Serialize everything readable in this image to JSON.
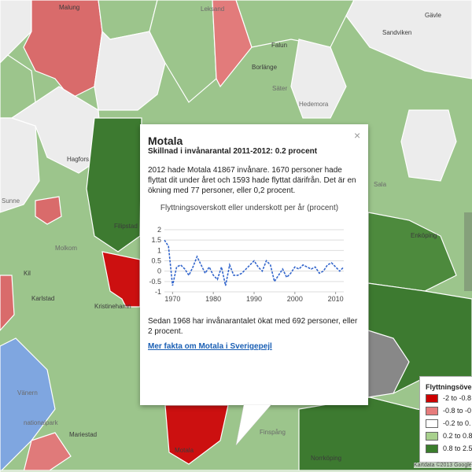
{
  "map": {
    "places": [
      "Malung",
      "Leksand",
      "Falun",
      "Borlänge",
      "Gävle",
      "Sandviken",
      "Säter",
      "Hedemora",
      "Hagfors",
      "Sunne",
      "Filipstad",
      "Molkom",
      "Kil",
      "Karlstad",
      "Kristinehamn",
      "Vänern",
      "nationalpark",
      "Mariestad",
      "Sala",
      "Enköping",
      "Finspång",
      "Norrköping",
      "Motala"
    ],
    "attribution": "Kartdata ©2013 Google"
  },
  "popup": {
    "title": "Motala",
    "subtitle": "Skillnad i invånarantal 2011-2012: 0.2 procent",
    "paragraph1": "2012 hade Motala 41867 invånare. 1670 personer hade flyttat dit under året och 1593 hade flyttat därifrån. Det är en ökning med 77 personer, eller 0,2 procent.",
    "paragraph2": "Sedan 1968 har invånarantalet ökat med 692 personer, eller 2 procent.",
    "link": "Mer fakta om Motala i Sverigepejl",
    "close": "×"
  },
  "chart_data": {
    "type": "line",
    "title": "Flyttningsoverskott eller underskott per år (procent)",
    "x": [
      1968,
      1969,
      1970,
      1971,
      1972,
      1973,
      1974,
      1975,
      1976,
      1977,
      1978,
      1979,
      1980,
      1981,
      1982,
      1983,
      1984,
      1985,
      1986,
      1987,
      1988,
      1989,
      1990,
      1991,
      1992,
      1993,
      1994,
      1995,
      1996,
      1997,
      1998,
      1999,
      2000,
      2001,
      2002,
      2003,
      2004,
      2005,
      2006,
      2007,
      2008,
      2009,
      2010,
      2011,
      2012
    ],
    "series": [
      {
        "color": "#3366cc",
        "values": [
          1.5,
          1.2,
          -0.7,
          0.2,
          0.3,
          0.1,
          -0.2,
          0.2,
          0.7,
          0.3,
          -0.1,
          0.2,
          -0.2,
          -0.4,
          0.2,
          -0.7,
          0.3,
          -0.2,
          -0.2,
          -0.1,
          0.1,
          0.3,
          0.5,
          0.2,
          0.0,
          0.5,
          0.3,
          -0.5,
          -0.2,
          0.1,
          -0.3,
          -0.1,
          0.2,
          0.1,
          0.3,
          0.2,
          0.1,
          0.2,
          -0.1,
          0.0,
          0.3,
          0.4,
          0.2,
          0.0,
          0.2
        ]
      }
    ],
    "xlim": [
      1968,
      2012
    ],
    "xticks": [
      1970,
      1980,
      1990,
      2000,
      2010
    ],
    "ylim": [
      -1,
      2
    ],
    "yticks": [
      -1,
      -0.5,
      0,
      0.5,
      1,
      1.5,
      2
    ],
    "grid": true
  },
  "legend": {
    "title": "Flyttningsöve",
    "items": [
      {
        "label": "-2 to -0.8",
        "color": "#cc0000"
      },
      {
        "label": "-0.8 to -0",
        "color": "#e67c7c"
      },
      {
        "label": "-0.2 to 0.",
        "color": "#ffffff"
      },
      {
        "label": "0.2 to 0.8",
        "color": "#a8d08d"
      },
      {
        "label": "0.8 to 2.5",
        "color": "#3a7d2c"
      }
    ]
  }
}
